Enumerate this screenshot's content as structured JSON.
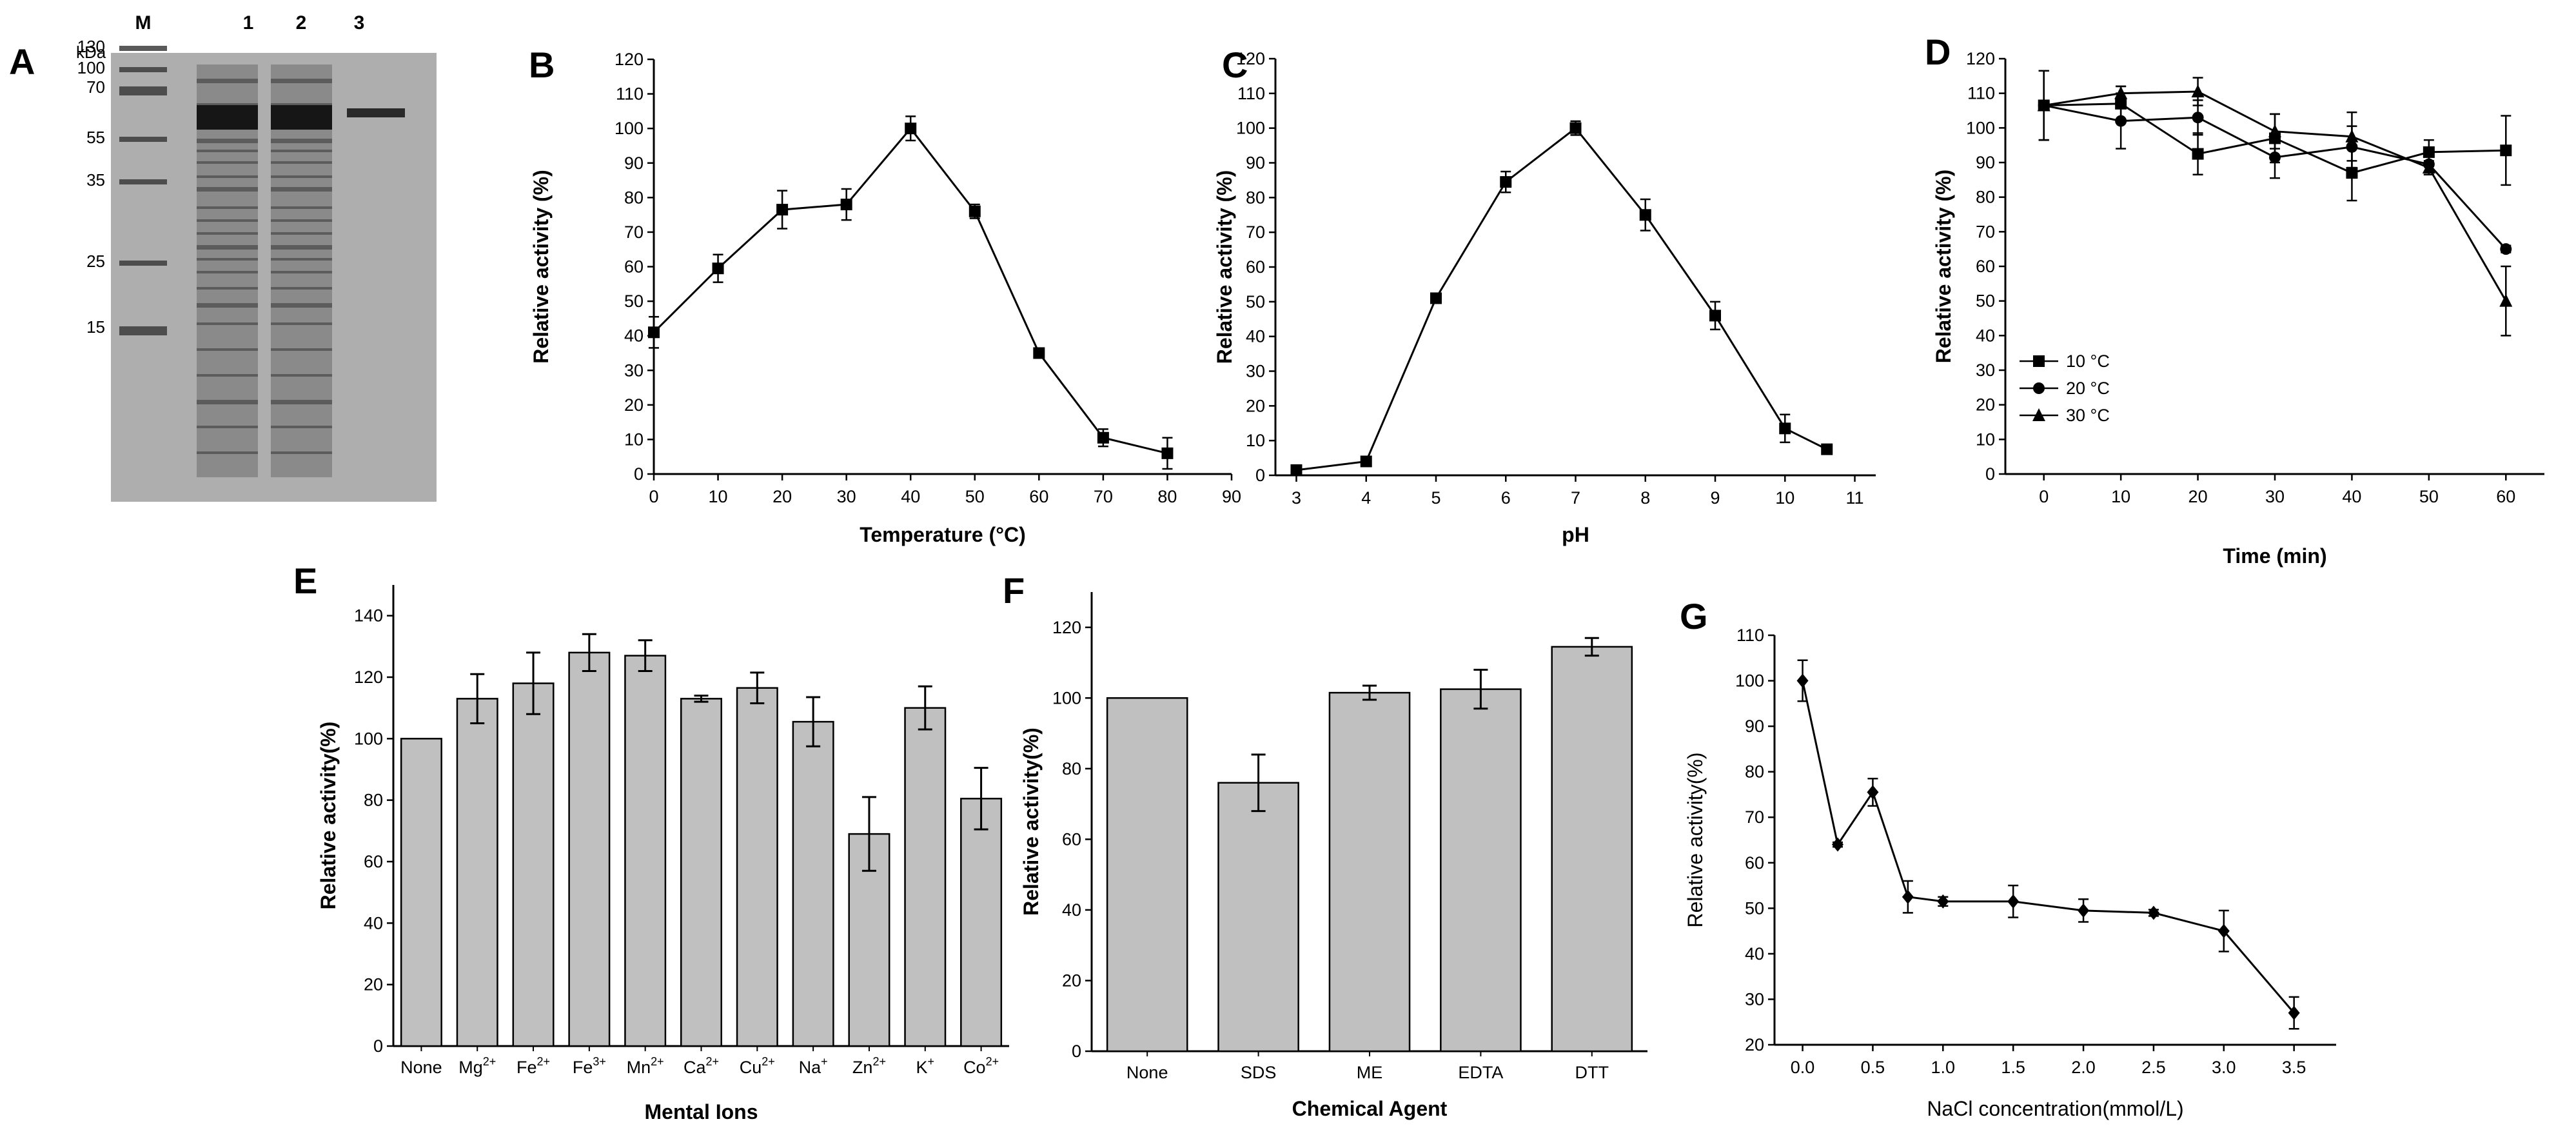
{
  "panels": {
    "A": {
      "label": "A",
      "unit": "kDa",
      "lanes": [
        "M",
        "1",
        "2",
        "3"
      ],
      "markers": [
        "130",
        "100",
        "70",
        "55",
        "35",
        "25",
        "15"
      ]
    }
  },
  "chart_data": [
    {
      "id": "B",
      "label": "B",
      "type": "line",
      "xlabel": "Temperature (°C)",
      "ylabel": "Relative activity (%)",
      "xlim": [
        0,
        90
      ],
      "ylim": [
        0,
        120
      ],
      "xticks": [
        0,
        10,
        20,
        30,
        40,
        50,
        60,
        70,
        80,
        90
      ],
      "yticks": [
        0,
        10,
        20,
        30,
        40,
        50,
        60,
        70,
        80,
        90,
        100,
        110,
        120
      ],
      "series": [
        {
          "marker": "square",
          "x": [
            0,
            10,
            20,
            30,
            40,
            50,
            60,
            70,
            80
          ],
          "y": [
            41,
            59.5,
            76.5,
            78,
            100,
            76,
            35,
            10.5,
            6
          ],
          "err": [
            4.5,
            4,
            5.5,
            4.5,
            3.5,
            2,
            1,
            2.5,
            4.5
          ]
        }
      ]
    },
    {
      "id": "C",
      "label": "C",
      "type": "line",
      "xlabel": "pH",
      "ylabel": "Relative activity (%)",
      "xlim": [
        2.7,
        11.3
      ],
      "ylim": [
        0,
        120
      ],
      "xticks": [
        3,
        4,
        5,
        6,
        7,
        8,
        9,
        10,
        11
      ],
      "yticks": [
        0,
        10,
        20,
        30,
        40,
        50,
        60,
        70,
        80,
        90,
        100,
        110,
        120
      ],
      "series": [
        {
          "marker": "square",
          "x": [
            3,
            4,
            5,
            6,
            7,
            8,
            9,
            10,
            10.6
          ],
          "y": [
            1.5,
            4,
            51,
            84.5,
            100,
            75,
            46,
            13.5,
            7.5
          ],
          "err": [
            1,
            0.5,
            0.7,
            3,
            2,
            4.5,
            4,
            4,
            0.7
          ]
        }
      ]
    },
    {
      "id": "D",
      "label": "D",
      "type": "line",
      "xlabel": "Time (min)",
      "ylabel": "Relative activity (%)",
      "xlim": [
        -5,
        65
      ],
      "ylim": [
        0,
        120
      ],
      "xticks": [
        0,
        10,
        20,
        30,
        40,
        50,
        60
      ],
      "yticks": [
        0,
        10,
        20,
        30,
        40,
        50,
        60,
        70,
        80,
        90,
        100,
        110,
        120
      ],
      "legend_position": "lower-left",
      "series": [
        {
          "name": "10 °C",
          "marker": "square",
          "x": [
            0,
            10,
            20,
            30,
            40,
            50,
            60
          ],
          "y": [
            106.5,
            107,
            92.5,
            97,
            87,
            93,
            93.5
          ],
          "err": [
            10,
            5,
            6,
            7,
            8,
            3.5,
            10
          ]
        },
        {
          "name": "20 °C",
          "marker": "circle",
          "x": [
            0,
            10,
            20,
            30,
            40,
            50,
            60
          ],
          "y": [
            106.5,
            102,
            103,
            91.5,
            94.5,
            89.5,
            65
          ],
          "err": [
            10,
            8,
            5,
            6,
            6,
            3,
            1
          ]
        },
        {
          "name": "30 °C",
          "marker": "triangle",
          "x": [
            0,
            10,
            20,
            30,
            40,
            50,
            60
          ],
          "y": [
            106.5,
            110,
            110.5,
            99,
            97.5,
            88.5,
            50
          ],
          "err": [
            10,
            2,
            4,
            5,
            7,
            2,
            10
          ]
        }
      ]
    },
    {
      "id": "E",
      "label": "E",
      "type": "bar",
      "xlabel": "Mental Ions",
      "ylabel": "Relative activity(%)",
      "ylim": [
        0,
        150
      ],
      "yticks": [
        0,
        20,
        40,
        60,
        80,
        100,
        120,
        140
      ],
      "categories": [
        {
          "base": "None",
          "sup": ""
        },
        {
          "base": "Mg",
          "sup": "2+"
        },
        {
          "base": "Fe",
          "sup": "2+"
        },
        {
          "base": "Fe",
          "sup": "3+"
        },
        {
          "base": "Mn",
          "sup": "2+"
        },
        {
          "base": "Ca",
          "sup": "2+"
        },
        {
          "base": "Cu",
          "sup": "2+"
        },
        {
          "base": "Na",
          "sup": "+"
        },
        {
          "base": "Zn",
          "sup": "2+"
        },
        {
          "base": "K",
          "sup": "+"
        },
        {
          "base": "Co",
          "sup": "2+"
        }
      ],
      "values": [
        100,
        113,
        118,
        128,
        127,
        113,
        116.5,
        105.5,
        69,
        110,
        80.5
      ],
      "err": [
        0,
        8,
        10,
        6,
        5,
        1,
        5,
        8,
        12,
        7,
        10
      ]
    },
    {
      "id": "F",
      "label": "F",
      "type": "bar",
      "xlabel": "Chemical Agent",
      "ylabel": "Relative activity(%)",
      "ylim": [
        0,
        130
      ],
      "yticks": [
        0,
        20,
        40,
        60,
        80,
        100,
        120
      ],
      "categories": [
        {
          "base": "None",
          "sup": ""
        },
        {
          "base": "SDS",
          "sup": ""
        },
        {
          "base": "ME",
          "sup": ""
        },
        {
          "base": "EDTA",
          "sup": ""
        },
        {
          "base": "DTT",
          "sup": ""
        }
      ],
      "values": [
        100,
        76,
        101.5,
        102.5,
        114.5
      ],
      "err": [
        0,
        8,
        2,
        5.5,
        2.5
      ]
    },
    {
      "id": "G",
      "label": "G",
      "type": "line",
      "xlabel": "NaCl concentration(mmol/L)",
      "ylabel": "Relative activity(%)",
      "xlim": [
        -0.2,
        3.8
      ],
      "ylim": [
        20,
        110
      ],
      "xticks": [
        0.0,
        0.5,
        1.0,
        1.5,
        2.0,
        2.5,
        3.0,
        3.5
      ],
      "xtick_labels": [
        "0.0",
        "0.5",
        "1.0",
        "1.5",
        "2.0",
        "2.5",
        "3.0",
        "3.5"
      ],
      "yticks": [
        20,
        30,
        40,
        50,
        60,
        70,
        80,
        90,
        100,
        110
      ],
      "series": [
        {
          "marker": "diamond",
          "x": [
            0,
            0.25,
            0.5,
            0.75,
            1.0,
            1.5,
            2.0,
            2.5,
            3.0,
            3.5
          ],
          "y": [
            100,
            64,
            75.5,
            52.5,
            51.5,
            51.5,
            49.5,
            49,
            45,
            27
          ],
          "err": [
            4.5,
            0.5,
            3,
            3.5,
            1,
            3.5,
            2.5,
            0.7,
            4.5,
            3.5
          ]
        }
      ]
    }
  ]
}
